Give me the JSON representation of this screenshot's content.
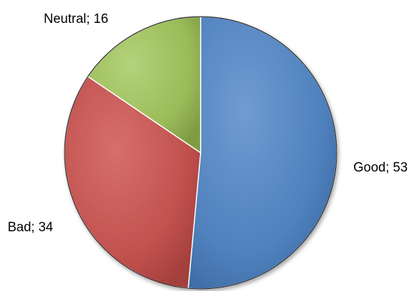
{
  "chart_data": {
    "type": "pie",
    "title": "",
    "categories": [
      "Good",
      "Bad",
      "Neutral"
    ],
    "values": [
      53,
      34,
      16
    ],
    "labels": [
      "Good; 53",
      "Bad; 34",
      "Neutral; 16"
    ],
    "colors": [
      "#4f81bd",
      "#c0504d",
      "#9bbb59"
    ],
    "legend": "none",
    "start_angle": "12 o'clock",
    "direction": "clockwise"
  }
}
